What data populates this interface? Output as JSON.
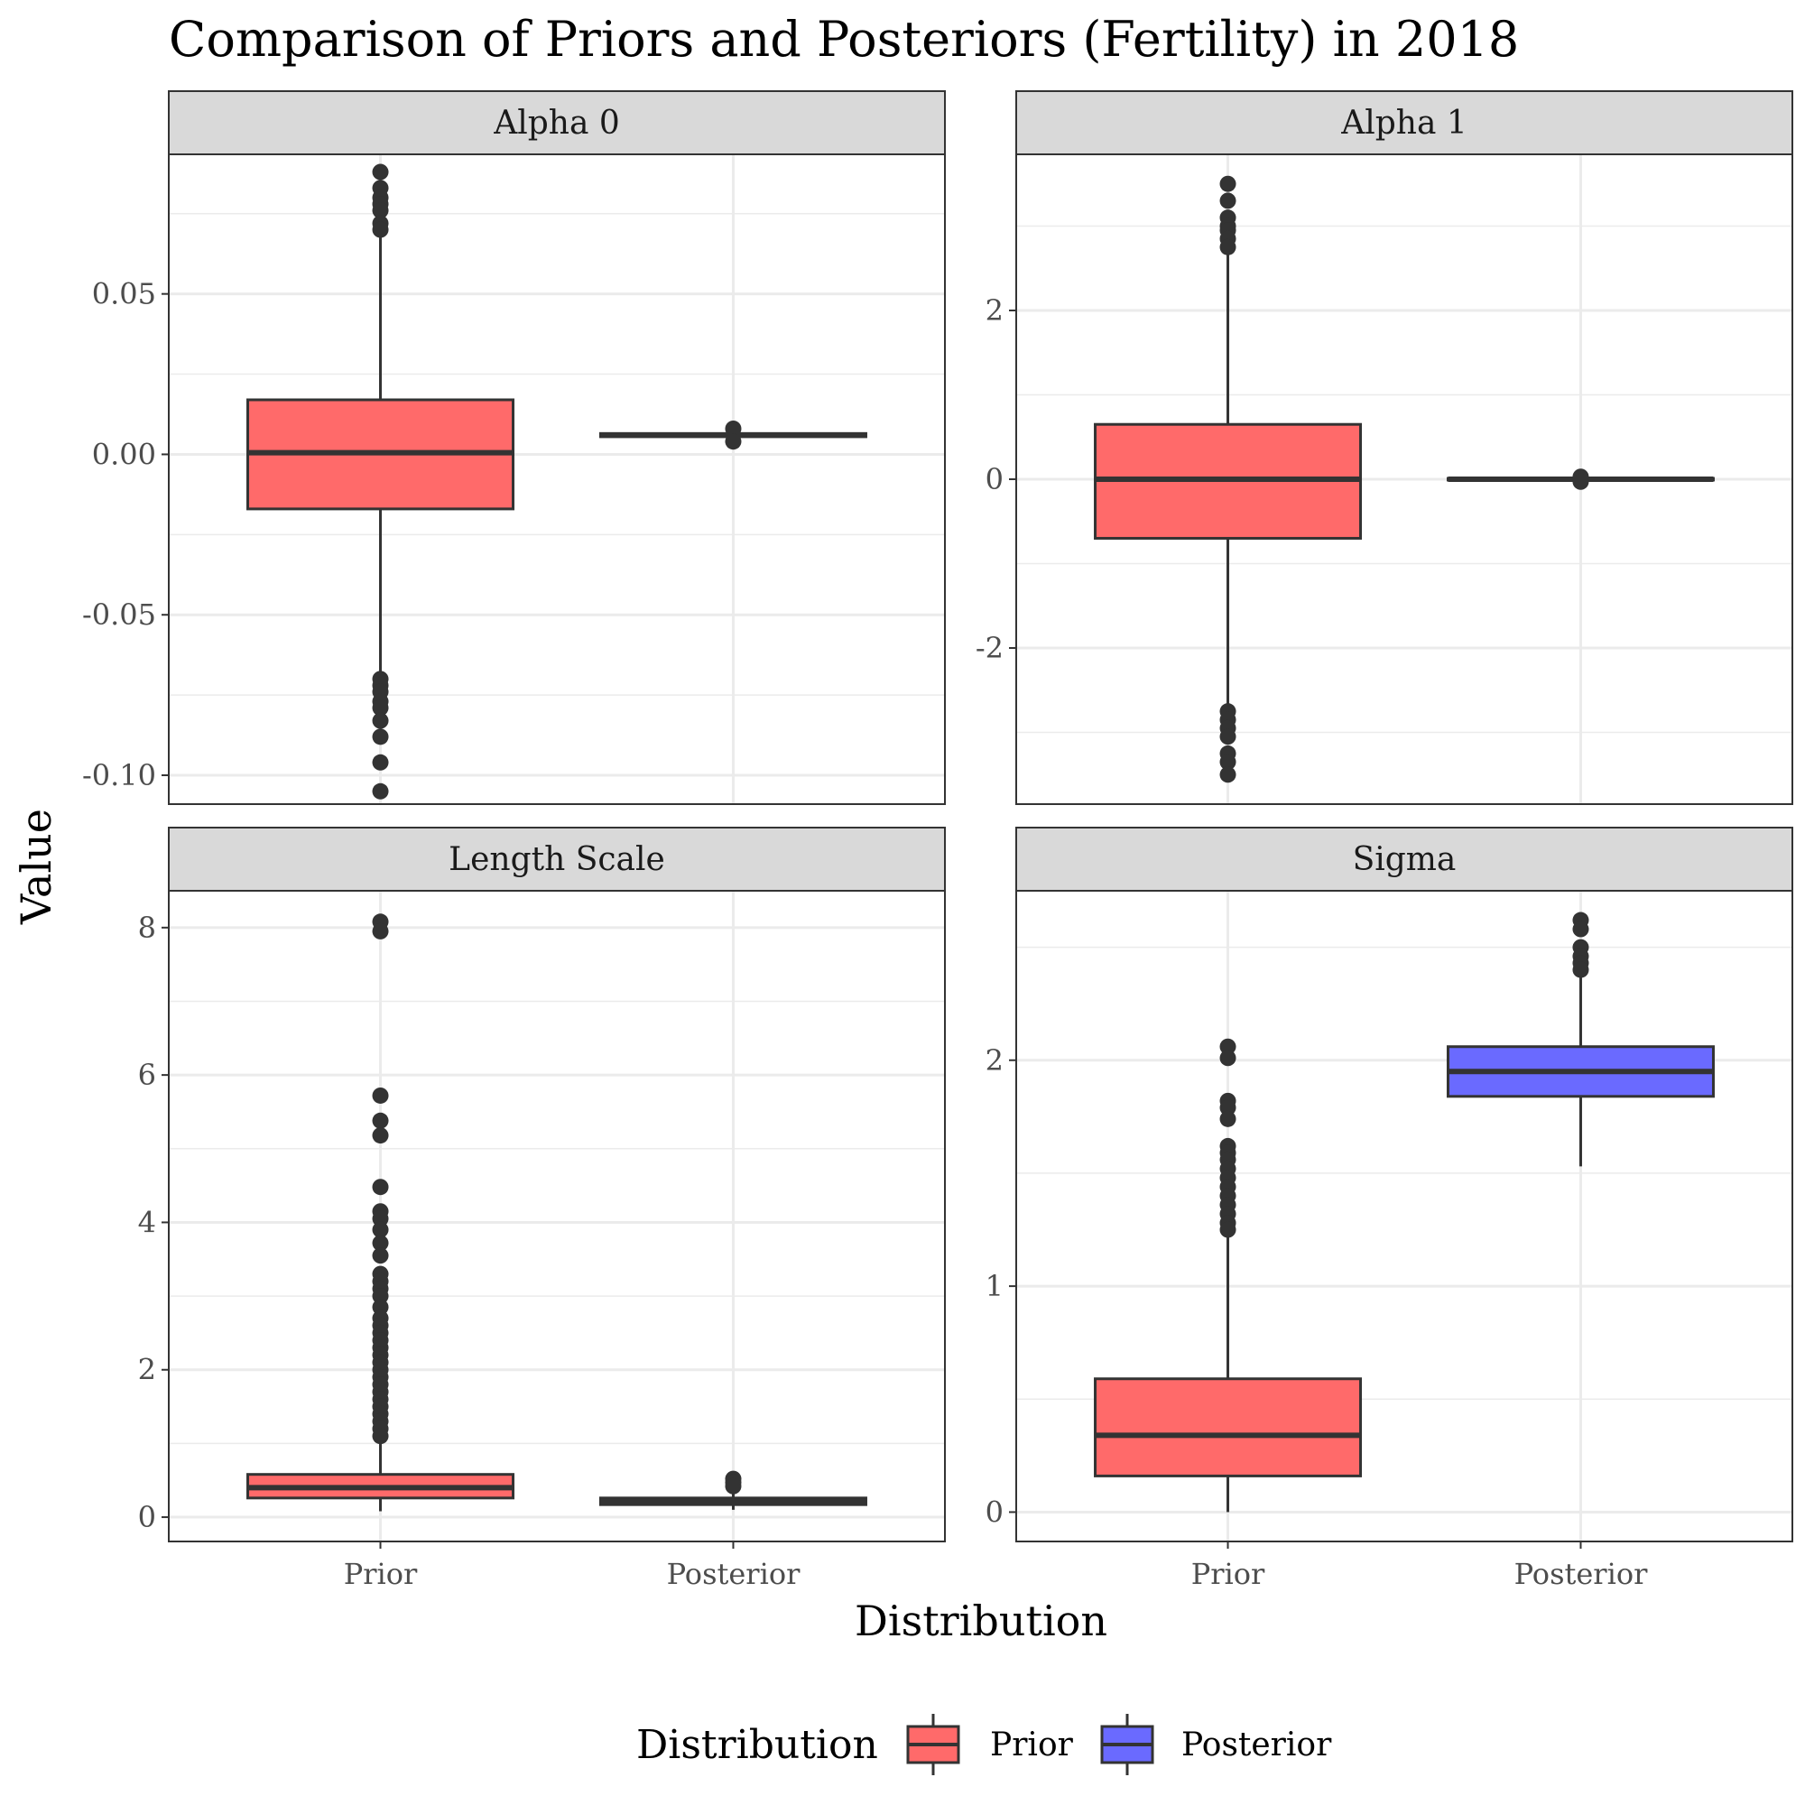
{
  "chart_data": {
    "type": "box",
    "title": "Comparison of Priors and Posteriors (Fertility) in 2018",
    "xlabel": "Distribution",
    "ylabel": "Value",
    "categories": [
      "Prior",
      "Posterior"
    ],
    "colors": {
      "Prior": "#ff6a6a",
      "Posterior": "#6a6aff"
    },
    "grid": true,
    "legend": {
      "title": "Distribution",
      "position": "bottom",
      "entries": [
        "Prior",
        "Posterior"
      ]
    },
    "panels": [
      {
        "name": "Alpha 0",
        "ylim": [
          -0.109,
          0.0935
        ],
        "yticks": [
          -0.1,
          -0.05,
          0.0,
          0.05
        ],
        "ytick_labels": [
          "-0.10",
          "-0.05",
          "0.00",
          "0.05"
        ],
        "series": [
          {
            "name": "Prior",
            "whisker_low": -0.069,
            "q1": -0.017,
            "median": 0.0005,
            "q3": 0.017,
            "whisker_high": 0.069,
            "outliers": [
              0.088,
              0.083,
              0.08,
              0.078,
              0.076,
              0.072,
              0.07,
              -0.07,
              -0.072,
              -0.074,
              -0.077,
              -0.079,
              -0.083,
              -0.088,
              -0.096,
              -0.105
            ]
          },
          {
            "name": "Posterior",
            "whisker_low": 0.0045,
            "q1": 0.0055,
            "median": 0.006,
            "q3": 0.0065,
            "whisker_high": 0.0075,
            "outliers": [
              0.008,
              0.004
            ]
          }
        ]
      },
      {
        "name": "Alpha 1",
        "ylim": [
          -3.85,
          3.85
        ],
        "yticks": [
          -2,
          0,
          2
        ],
        "ytick_labels": [
          "-2",
          "0",
          "2"
        ],
        "series": [
          {
            "name": "Prior",
            "whisker_low": -2.68,
            "q1": -0.7,
            "median": 0.0,
            "q3": 0.65,
            "whisker_high": 2.68,
            "outliers": [
              3.5,
              3.3,
              3.1,
              3.0,
              2.95,
              2.85,
              2.75,
              -2.75,
              -2.85,
              -2.95,
              -3.05,
              -3.25,
              -3.35,
              -3.5
            ]
          },
          {
            "name": "Posterior",
            "whisker_low": -0.02,
            "q1": -0.01,
            "median": 0.0,
            "q3": 0.01,
            "whisker_high": 0.02,
            "outliers": [
              0.03,
              -0.03
            ]
          }
        ]
      },
      {
        "name": "Length Scale",
        "ylim": [
          -0.33,
          8.5
        ],
        "yticks": [
          0,
          2,
          4,
          6,
          8
        ],
        "ytick_labels": [
          "0",
          "2",
          "4",
          "6",
          "8"
        ],
        "series": [
          {
            "name": "Prior",
            "whisker_low": 0.08,
            "q1": 0.26,
            "median": 0.4,
            "q3": 0.58,
            "whisker_high": 1.05,
            "outliers": [
              8.08,
              7.95,
              5.72,
              5.38,
              5.18,
              4.48,
              4.15,
              4.05,
              3.9,
              3.72,
              3.55,
              3.3,
              3.2,
              3.1,
              3.0,
              2.85,
              2.7,
              2.6,
              2.5,
              2.4,
              2.3,
              2.2,
              2.1,
              2.0,
              1.9,
              1.8,
              1.7,
              1.6,
              1.5,
              1.4,
              1.3,
              1.2,
              1.1
            ]
          },
          {
            "name": "Posterior",
            "whisker_low": 0.1,
            "q1": 0.17,
            "median": 0.21,
            "q3": 0.26,
            "whisker_high": 0.36,
            "outliers": [
              0.52,
              0.47,
              0.42
            ]
          }
        ]
      },
      {
        "name": "Sigma",
        "ylim": [
          -0.13,
          2.75
        ],
        "yticks": [
          0,
          1,
          2
        ],
        "ytick_labels": [
          "0",
          "1",
          "2"
        ],
        "series": [
          {
            "name": "Prior",
            "whisker_low": 0.0,
            "q1": 0.16,
            "median": 0.34,
            "q3": 0.59,
            "whisker_high": 1.22,
            "outliers": [
              2.06,
              2.01,
              1.82,
              1.79,
              1.74,
              1.62,
              1.59,
              1.56,
              1.52,
              1.48,
              1.44,
              1.4,
              1.36,
              1.32,
              1.28,
              1.25
            ]
          },
          {
            "name": "Posterior",
            "whisker_low": 1.53,
            "q1": 1.84,
            "median": 1.95,
            "q3": 2.06,
            "whisker_high": 2.37,
            "outliers": [
              2.62,
              2.58,
              2.5,
              2.46,
              2.43,
              2.4
            ]
          }
        ]
      }
    ]
  }
}
